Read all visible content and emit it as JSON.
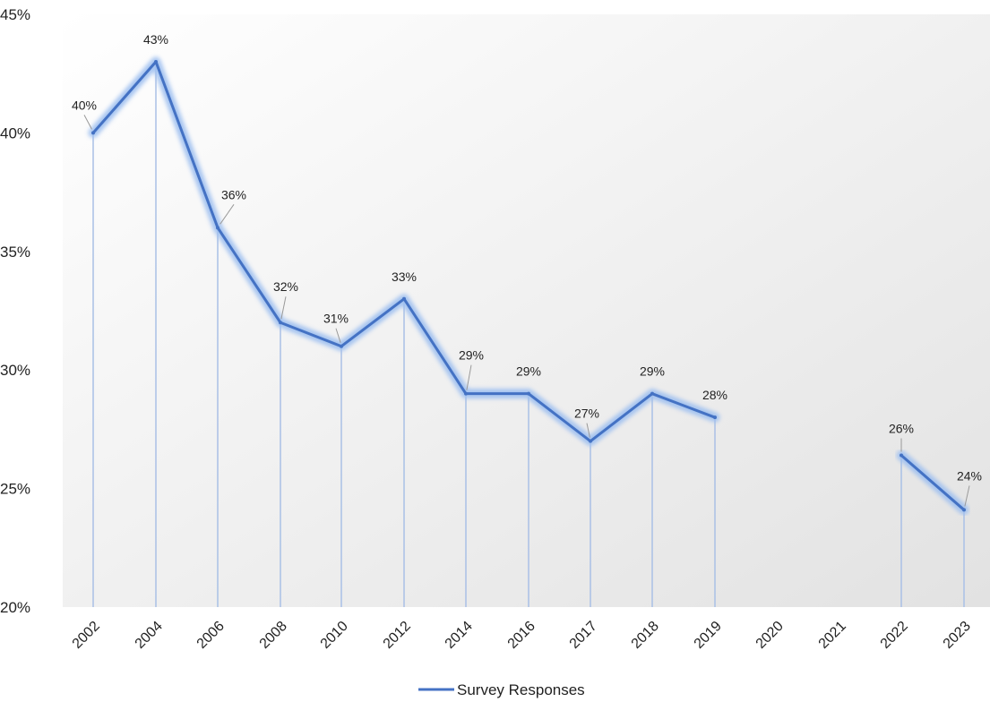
{
  "chart_data": {
    "type": "line",
    "categories": [
      "2002",
      "2004",
      "2006",
      "2008",
      "2010",
      "2012",
      "2014",
      "2016",
      "2017",
      "2018",
      "2019",
      "2020",
      "2021",
      "2022",
      "2023"
    ],
    "series": [
      {
        "name": "Survey Responses",
        "values": [
          40,
          43,
          36,
          32,
          31,
          33,
          29,
          29,
          27,
          29,
          28,
          null,
          null,
          26.4,
          24.1
        ],
        "labels": [
          "40%",
          "43%",
          "36%",
          "32%",
          "31%",
          "33%",
          "29%",
          "29%",
          "27%",
          "29%",
          "28%",
          "",
          "",
          "26%",
          "24%"
        ],
        "color": "#4472C4"
      }
    ],
    "ylim": [
      20,
      45
    ],
    "yticks": [
      "20%",
      "25%",
      "30%",
      "35%",
      "40%",
      "45%"
    ],
    "legend": "bottom",
    "grid": false,
    "drop_lines": true
  }
}
